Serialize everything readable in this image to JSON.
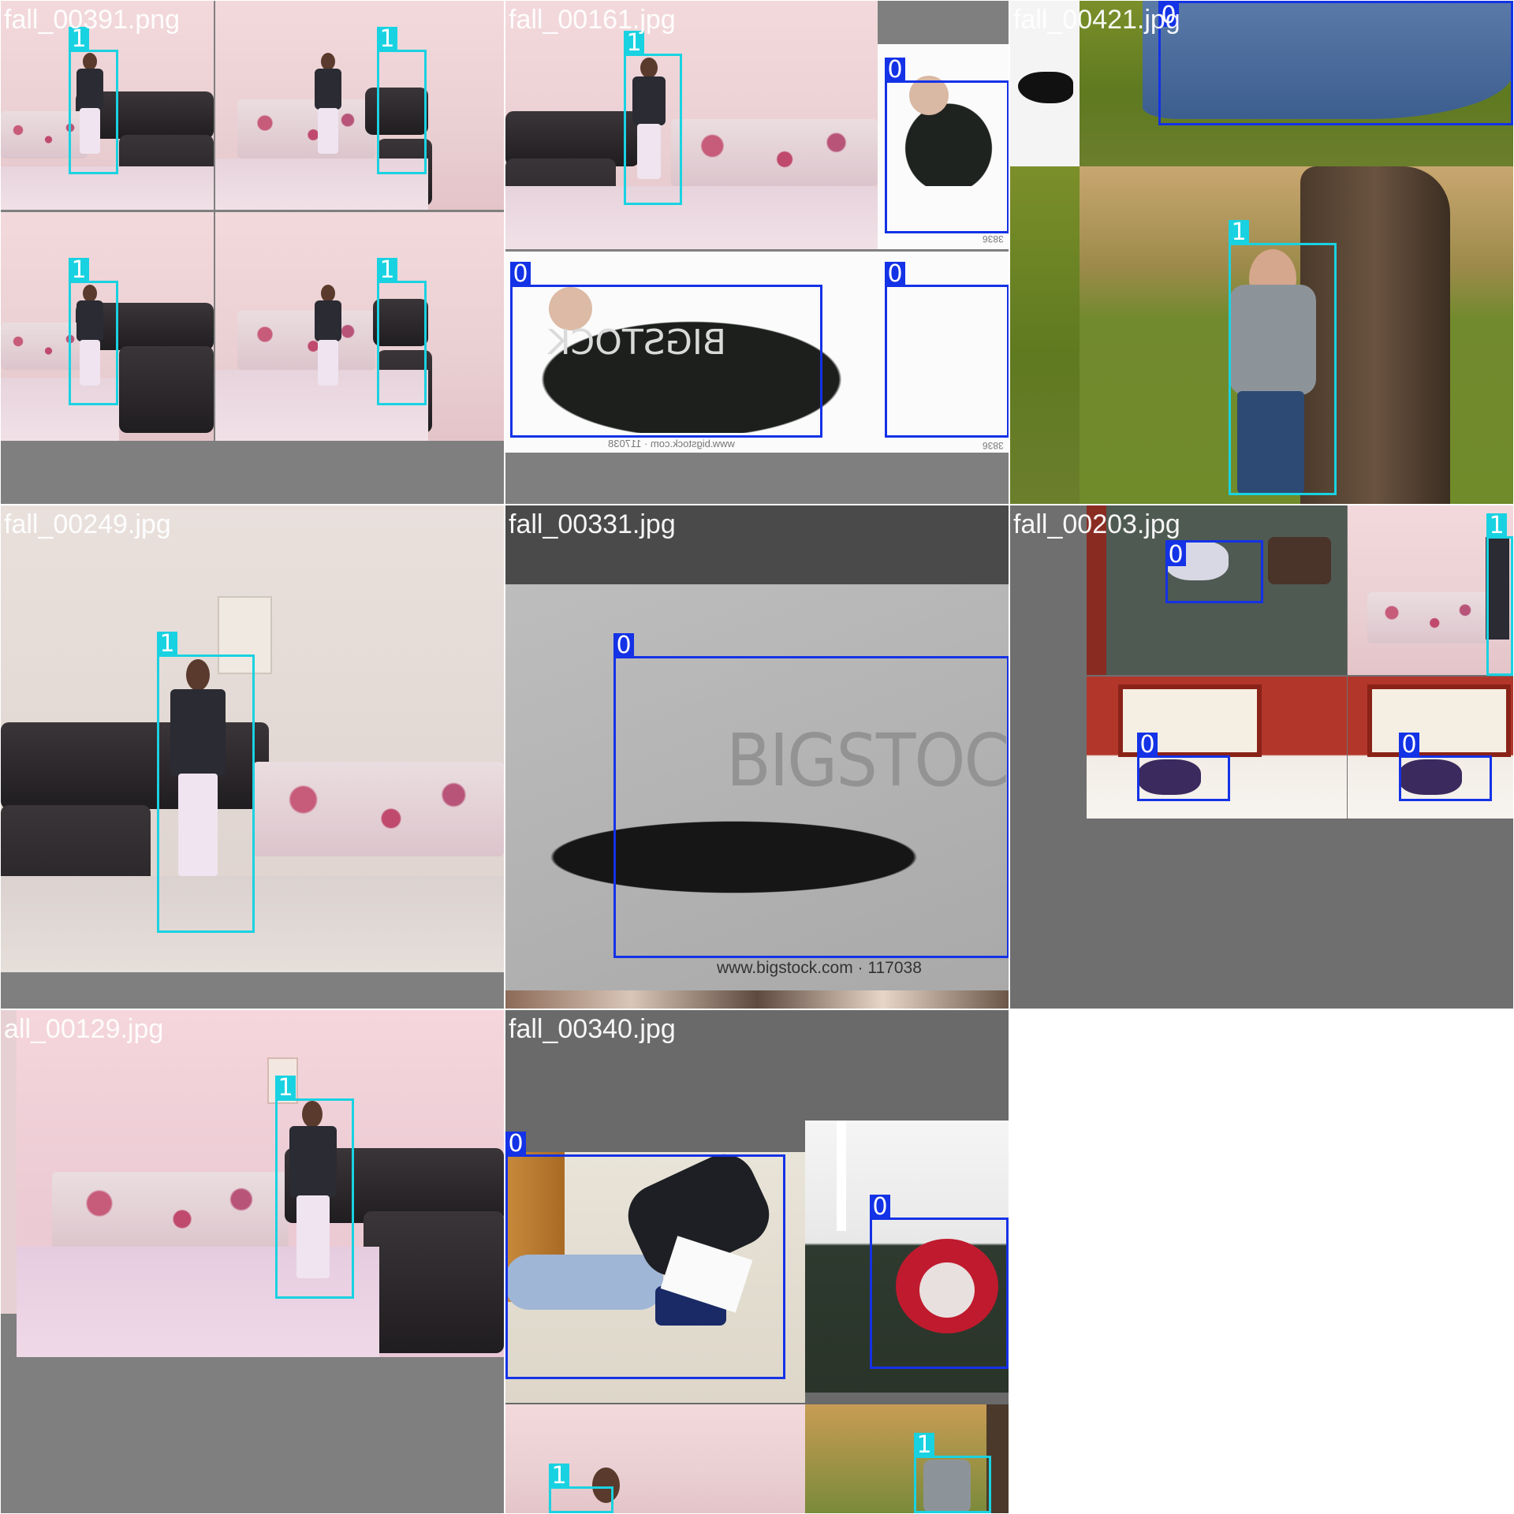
{
  "mosaic": {
    "tiles": [
      {
        "caption": "fall_00391.png",
        "labels": [
          "1",
          "1",
          "1",
          "1"
        ]
      },
      {
        "caption": "fall_00161.jpg",
        "labels": [
          "1",
          "0",
          "0",
          "0"
        ],
        "watermark": "www.bigstock.com · 117038",
        "watermark_snippet": "3836"
      },
      {
        "caption": "fall_00421.jpg",
        "labels": [
          "0",
          "1"
        ]
      },
      {
        "caption": "fall_00249.jpg",
        "labels": [
          "1"
        ]
      },
      {
        "caption": "fall_00331.jpg",
        "labels": [
          "0"
        ],
        "watermark_big": "BIGSTOCK",
        "watermark_url": "www.bigstock.com · 117038"
      },
      {
        "caption": "fall_00203.jpg",
        "labels": [
          "0",
          "1",
          "0",
          "0"
        ]
      },
      {
        "caption": "all_00129.jpg",
        "labels": [
          "1"
        ]
      },
      {
        "caption": "fall_00340.jpg",
        "labels": [
          "0",
          "0",
          "1",
          "1"
        ]
      }
    ]
  },
  "colors": {
    "class_0_box": "#1432e6",
    "class_1_box": "#19d2e1",
    "background_gray": "#7f7f7f",
    "caption_text": "#ffffff"
  }
}
